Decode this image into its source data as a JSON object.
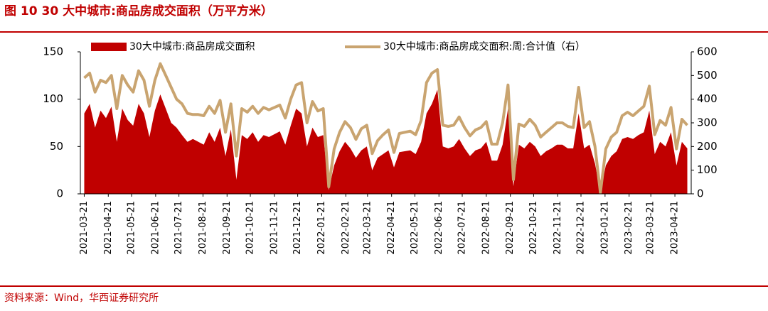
{
  "chart_data": {
    "type": "combo",
    "title": "图 10 30 大中城市:商品房成交面积（万平方米）",
    "source": "资料来源：Wind，华西证券研究所",
    "x": [
      "2021-03-21",
      "2021-03-28",
      "2021-04-04",
      "2021-04-11",
      "2021-04-18",
      "2021-04-25",
      "2021-05-02",
      "2021-05-09",
      "2021-05-16",
      "2021-05-23",
      "2021-05-30",
      "2021-06-06",
      "2021-06-13",
      "2021-06-20",
      "2021-06-27",
      "2021-07-04",
      "2021-07-11",
      "2021-07-18",
      "2021-07-25",
      "2021-08-01",
      "2021-08-08",
      "2021-08-15",
      "2021-08-22",
      "2021-08-29",
      "2021-09-05",
      "2021-09-12",
      "2021-09-19",
      "2021-09-26",
      "2021-10-03",
      "2021-10-10",
      "2021-10-17",
      "2021-10-24",
      "2021-10-31",
      "2021-11-07",
      "2021-11-14",
      "2021-11-21",
      "2021-11-28",
      "2021-12-05",
      "2021-12-12",
      "2021-12-19",
      "2021-12-26",
      "2022-01-02",
      "2022-01-09",
      "2022-01-16",
      "2022-01-23",
      "2022-01-30",
      "2022-02-06",
      "2022-02-13",
      "2022-02-20",
      "2022-02-27",
      "2022-03-06",
      "2022-03-13",
      "2022-03-20",
      "2022-03-27",
      "2022-04-03",
      "2022-04-10",
      "2022-04-17",
      "2022-04-24",
      "2022-05-01",
      "2022-05-08",
      "2022-05-15",
      "2022-05-22",
      "2022-05-29",
      "2022-06-05",
      "2022-06-12",
      "2022-06-19",
      "2022-06-26",
      "2022-07-03",
      "2022-07-10",
      "2022-07-17",
      "2022-07-24",
      "2022-07-31",
      "2022-08-07",
      "2022-08-14",
      "2022-08-21",
      "2022-08-28",
      "2022-09-04",
      "2022-09-11",
      "2022-09-18",
      "2022-09-25",
      "2022-10-02",
      "2022-10-09",
      "2022-10-16",
      "2022-10-23",
      "2022-10-30",
      "2022-11-06",
      "2022-11-13",
      "2022-11-20",
      "2022-11-27",
      "2022-12-04",
      "2022-12-11",
      "2022-12-18",
      "2022-12-25",
      "2023-01-01",
      "2023-01-08",
      "2023-01-15",
      "2023-01-22",
      "2023-01-29",
      "2023-02-05",
      "2023-02-12",
      "2023-02-19",
      "2023-02-26",
      "2023-03-05",
      "2023-03-12",
      "2023-03-19",
      "2023-03-26",
      "2023-04-02",
      "2023-04-09",
      "2023-04-16",
      "2023-04-23",
      "2023-04-30",
      "2023-05-07"
    ],
    "series": [
      {
        "name": "30大中城市:商品房成交面积",
        "type": "area",
        "color": "#c00000",
        "values": [
          85,
          95,
          70,
          88,
          80,
          92,
          55,
          90,
          78,
          72,
          95,
          85,
          60,
          88,
          105,
          90,
          75,
          70,
          62,
          55,
          58,
          55,
          52,
          65,
          55,
          70,
          40,
          68,
          15,
          62,
          58,
          65,
          55,
          62,
          60,
          63,
          66,
          52,
          72,
          90,
          85,
          50,
          70,
          60,
          62,
          4,
          30,
          45,
          55,
          48,
          38,
          46,
          50,
          25,
          38,
          42,
          46,
          28,
          44,
          45,
          46,
          42,
          55,
          85,
          95,
          110,
          50,
          48,
          50,
          58,
          48,
          40,
          46,
          48,
          55,
          35,
          35,
          52,
          90,
          8,
          52,
          48,
          55,
          50,
          40,
          45,
          48,
          52,
          52,
          48,
          48,
          85,
          48,
          52,
          32,
          2,
          30,
          40,
          45,
          58,
          60,
          58,
          62,
          65,
          88,
          42,
          55,
          50,
          65,
          30,
          55,
          48
        ]
      },
      {
        "name": "30大中城市:商品房成交面积:周:合计值（右）",
        "type": "line",
        "axis": "y2",
        "color": "#c9a470",
        "values": [
          490,
          510,
          430,
          480,
          470,
          500,
          360,
          500,
          460,
          430,
          520,
          480,
          370,
          480,
          550,
          500,
          450,
          400,
          380,
          340,
          335,
          335,
          330,
          370,
          340,
          395,
          260,
          380,
          160,
          360,
          345,
          370,
          340,
          365,
          355,
          365,
          375,
          320,
          400,
          460,
          470,
          300,
          390,
          350,
          360,
          30,
          190,
          260,
          305,
          280,
          230,
          275,
          290,
          170,
          225,
          250,
          270,
          175,
          255,
          260,
          265,
          250,
          310,
          470,
          510,
          525,
          290,
          285,
          290,
          325,
          280,
          245,
          270,
          280,
          305,
          210,
          210,
          300,
          460,
          60,
          295,
          285,
          315,
          290,
          240,
          260,
          280,
          300,
          300,
          285,
          280,
          450,
          280,
          305,
          200,
          5,
          190,
          240,
          260,
          330,
          345,
          330,
          350,
          370,
          455,
          250,
          310,
          290,
          365,
          190,
          315,
          290
        ]
      }
    ],
    "xlim": [
      "2021-03-16",
      "2023-05-12"
    ],
    "xticks": [
      "2021-03-21",
      "2021-04-21",
      "2021-05-21",
      "2021-06-21",
      "2021-07-21",
      "2021-08-21",
      "2021-09-21",
      "2021-10-21",
      "2021-11-21",
      "2021-12-21",
      "2022-01-21",
      "2022-02-21",
      "2022-03-21",
      "2022-04-21",
      "2022-05-21",
      "2022-06-21",
      "2022-07-21",
      "2022-08-21",
      "2022-09-21",
      "2022-10-21",
      "2022-11-21",
      "2022-12-21",
      "2023-01-21",
      "2023-02-21",
      "2023-03-21",
      "2023-04-21"
    ],
    "ylim": [
      0,
      150
    ],
    "yticks": [
      0,
      50,
      100,
      150
    ],
    "y2lim": [
      0,
      600
    ],
    "y2ticks": [
      0,
      100,
      200,
      300,
      400,
      500,
      600
    ],
    "legend": "top"
  }
}
